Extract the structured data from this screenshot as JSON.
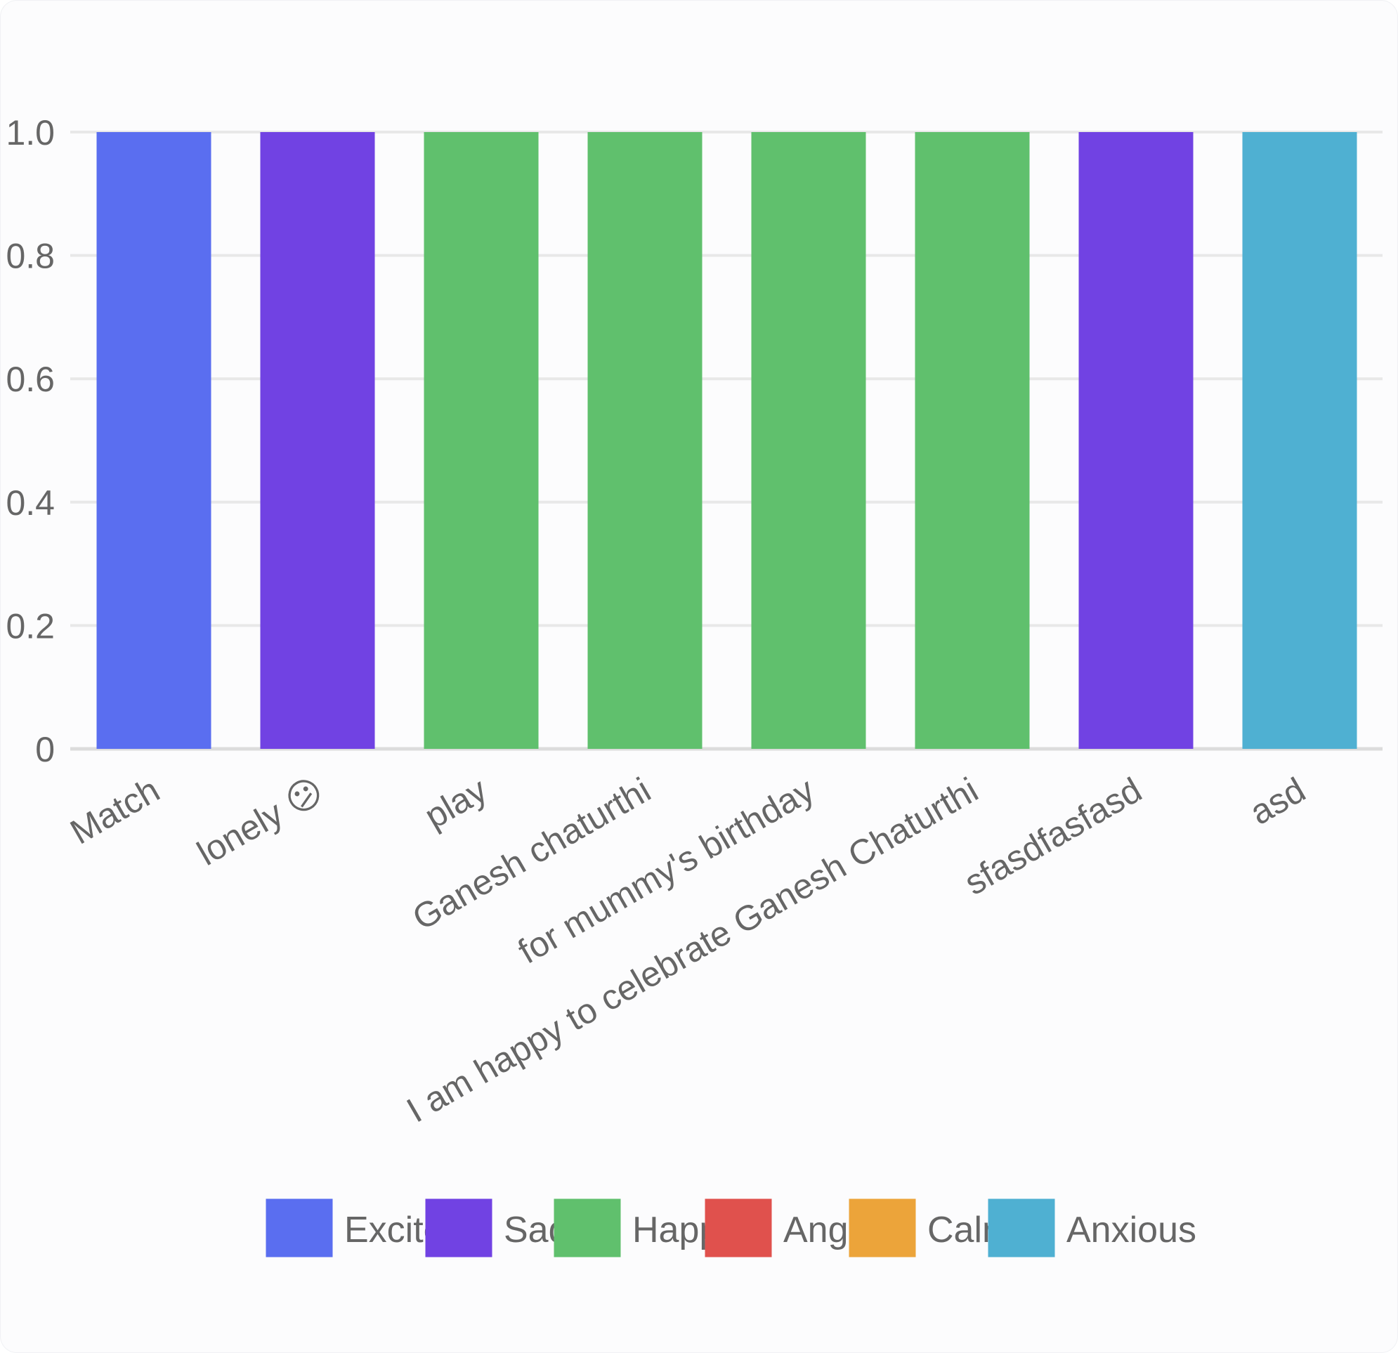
{
  "chart_data": {
    "type": "bar",
    "categories": [
      "Match",
      "lonely 😕",
      "play",
      "Ganesh chaturthi",
      "for  mummy's  birthday",
      "I am happy to celebrate Ganesh Chaturthi",
      "sfasdfasfasd",
      "asd"
    ],
    "values": [
      1,
      1,
      1,
      1,
      1,
      1,
      1,
      1
    ],
    "bar_series": [
      "Excited",
      "Sad",
      "Happy",
      "Happy",
      "Happy",
      "Happy",
      "Sad",
      "Anxious"
    ],
    "ylim": [
      0,
      1
    ],
    "yticks": [
      "0",
      "0.2",
      "0.4",
      "0.6",
      "0.8",
      "1.0"
    ],
    "grid": true,
    "legend_position": "bottom",
    "legend": [
      {
        "name": "Excited",
        "color": "#5a6ef0"
      },
      {
        "name": "Sad",
        "color": "#7142e3"
      },
      {
        "name": "Happy",
        "color": "#60c06d"
      },
      {
        "name": "Angry",
        "color": "#e0514d"
      },
      {
        "name": "Calm",
        "color": "#eca43a"
      },
      {
        "name": "Anxious",
        "color": "#4fb0d2"
      }
    ]
  }
}
